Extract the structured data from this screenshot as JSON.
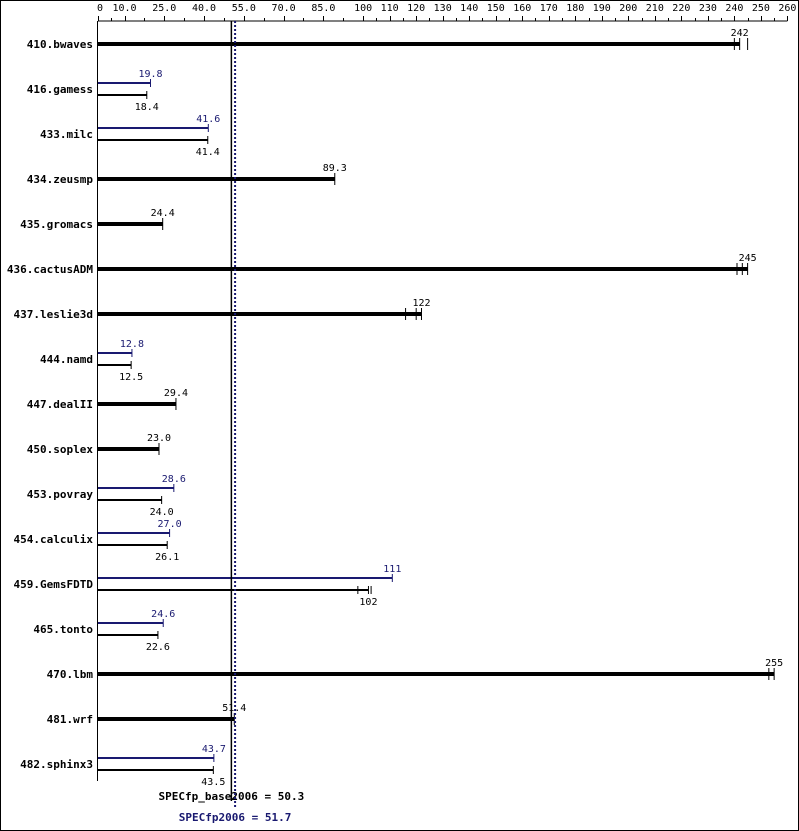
{
  "chart_data": {
    "type": "bar",
    "orientation": "horizontal",
    "title": "",
    "xlabel": "",
    "ylabel": "",
    "xlim": [
      0,
      260
    ],
    "grid": false,
    "legend": "none",
    "tick_labels": [
      "0",
      "10.0",
      "25.0",
      "40.0",
      "55.0",
      "70.0",
      "85.0",
      "100",
      "110",
      "120",
      "130",
      "140",
      "150",
      "160",
      "170",
      "180",
      "190",
      "200",
      "210",
      "220",
      "230",
      "240",
      "250",
      "260"
    ],
    "tick_values": [
      0,
      10,
      25,
      40,
      55,
      70,
      85,
      100,
      110,
      120,
      130,
      140,
      150,
      160,
      170,
      180,
      190,
      200,
      210,
      220,
      230,
      240,
      250,
      260
    ],
    "colors": {
      "base": "#000000",
      "peak": "#191970"
    },
    "categories": [
      "410.bwaves",
      "416.gamess",
      "433.milc",
      "434.zeusmp",
      "435.gromacs",
      "436.cactusADM",
      "437.leslie3d",
      "444.namd",
      "447.dealII",
      "450.soplex",
      "453.povray",
      "454.calculix",
      "459.GemsFDTD",
      "465.tonto",
      "470.lbm",
      "481.wrf",
      "482.sphinx3"
    ],
    "series": [
      {
        "name": "",
        "key": "base",
        "values": [
          242,
          18.4,
          41.4,
          89.3,
          24.4,
          245,
          122,
          12.5,
          29.4,
          23.0,
          24.0,
          26.1,
          102,
          22.6,
          255,
          51.4,
          43.5
        ],
        "labels": [
          "242",
          "18.4",
          "41.4",
          "89.3",
          "24.4",
          "245",
          "122",
          "12.5",
          "29.4",
          "23.0",
          "24.0",
          "26.1",
          "102",
          "22.6",
          "255",
          "51.4",
          "43.5"
        ],
        "runs": [
          [
            240,
            242,
            245
          ],
          [
            18.4
          ],
          [
            41.4
          ],
          [
            89.3
          ],
          [
            24.4
          ],
          [
            241,
            243,
            245
          ],
          [
            116,
            120,
            122
          ],
          [
            12.5
          ],
          [
            29.4
          ],
          [
            23.0
          ],
          [
            24.0
          ],
          [
            26.1
          ],
          [
            98,
            102,
            103
          ],
          [
            22.6
          ],
          [
            253,
            255
          ],
          [
            51.4
          ],
          [
            43.5
          ]
        ]
      },
      {
        "name": "",
        "key": "peak",
        "values": [
          null,
          19.8,
          41.6,
          null,
          null,
          null,
          null,
          12.8,
          null,
          null,
          28.6,
          27.0,
          111,
          24.6,
          null,
          null,
          43.7
        ],
        "labels": [
          null,
          "19.8",
          "41.6",
          null,
          null,
          null,
          null,
          "12.8",
          null,
          null,
          "28.6",
          "27.0",
          "111",
          "24.6",
          null,
          null,
          "43.7"
        ]
      }
    ],
    "reference_lines": [
      {
        "key": "base",
        "value": 50.3,
        "label": "SPECfp_base2006 = 50.3"
      },
      {
        "key": "peak",
        "value": 51.7,
        "label": "SPECfp2006 = 51.7"
      }
    ]
  }
}
